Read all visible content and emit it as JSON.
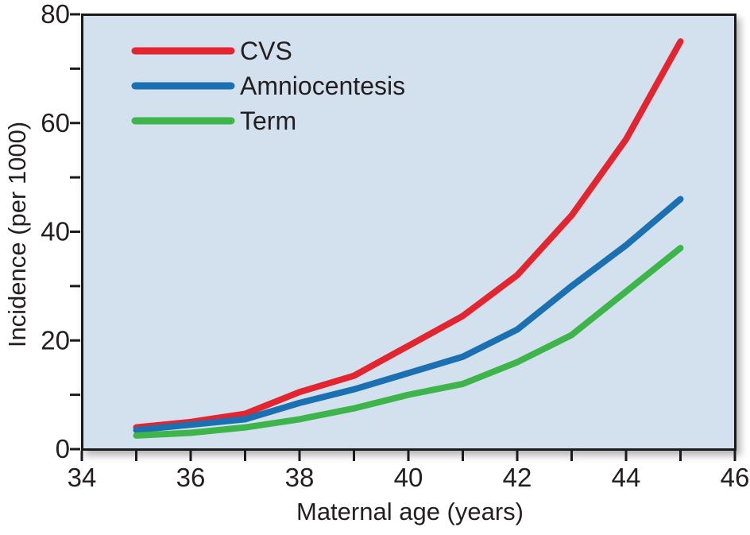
{
  "figure": {
    "background": "#ffffff",
    "plot_background": "#d3e1ef",
    "frame_color": "#1a1a1a",
    "text_color": "#231f20"
  },
  "chart_data": {
    "type": "line",
    "title": "",
    "xlabel": "Maternal age (years)",
    "ylabel": "Incidence (per 1000)",
    "xlim": [
      34,
      46
    ],
    "ylim": [
      0,
      80
    ],
    "grid": false,
    "legend_position": "top-left-inside",
    "x": [
      35,
      36,
      37,
      38,
      39,
      40,
      41,
      42,
      43,
      44,
      45
    ],
    "series": [
      {
        "name": "CVS",
        "color": "#e3252f",
        "values": [
          4,
          5,
          6.5,
          10.5,
          13.5,
          19,
          24.5,
          32,
          43,
          57,
          75
        ]
      },
      {
        "name": "Amniocentesis",
        "color": "#1a70b1",
        "values": [
          3.5,
          4.5,
          5.5,
          8.5,
          11,
          14,
          17,
          22,
          30,
          37.5,
          46
        ]
      },
      {
        "name": "Term",
        "color": "#3eb54a",
        "values": [
          2.5,
          3,
          4,
          5.5,
          7.5,
          10,
          12,
          16,
          21,
          29,
          37
        ]
      }
    ],
    "x_ticks": [
      34,
      35,
      36,
      37,
      38,
      39,
      40,
      41,
      42,
      43,
      44,
      45,
      46
    ],
    "x_tick_labels": [
      "34",
      "",
      "36",
      "",
      "38",
      "",
      "40",
      "",
      "42",
      "",
      "44",
      "",
      "46"
    ],
    "y_ticks": [
      0,
      10,
      20,
      30,
      40,
      50,
      60,
      70,
      80
    ],
    "y_tick_labels": [
      "0",
      "",
      "20",
      "",
      "40",
      "",
      "60",
      "",
      "80"
    ]
  }
}
